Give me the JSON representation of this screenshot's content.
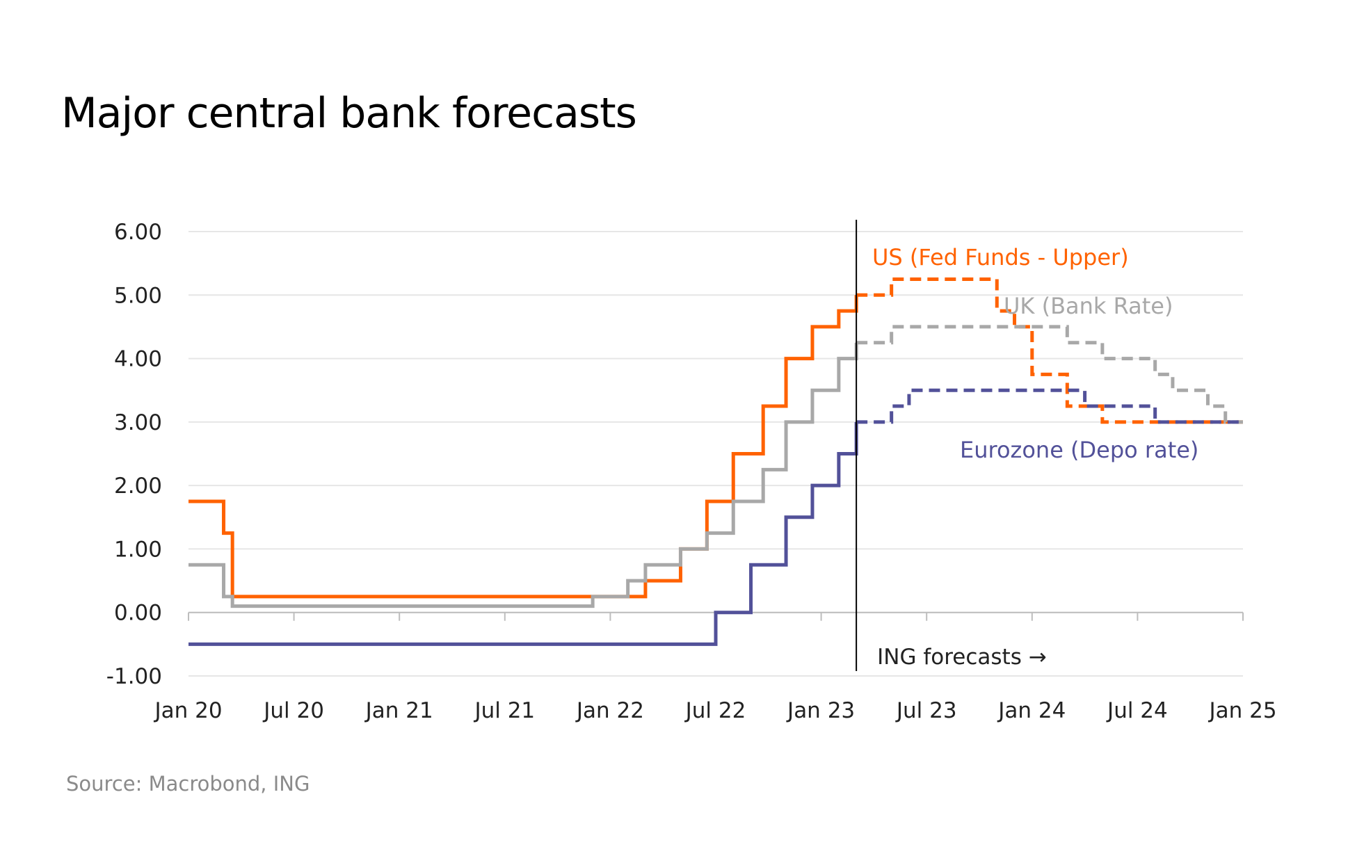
{
  "title": "Major central bank forecasts",
  "source": "Source: Macrobond, ING",
  "forecast_label": "ING forecasts →",
  "chart_data": {
    "type": "line",
    "title": "Major central bank forecasts",
    "ylim": [
      -1,
      6
    ],
    "yticks": [
      "-1.00",
      "0.00",
      "1.00",
      "2.00",
      "3.00",
      "4.00",
      "5.00",
      "6.00"
    ],
    "xticks": [
      "Jan 20",
      "Jul 20",
      "Jan 21",
      "Jul 21",
      "Jan 22",
      "Jul 22",
      "Jan 23",
      "Jul 23",
      "Jan 24",
      "Jul 24",
      "Jan 25"
    ],
    "xlim": [
      "2020-01",
      "2025-01"
    ],
    "grid": true,
    "forecast_start": "2023-03",
    "series": [
      {
        "name": "US (Fed Funds - Upper)",
        "color": "#FF6200",
        "actual": [
          [
            "2020-01",
            1.75
          ],
          [
            "2020-03",
            1.25
          ],
          [
            "2020-03.5",
            0.25
          ],
          [
            "2022-03",
            0.5
          ],
          [
            "2022-05",
            1.0
          ],
          [
            "2022-06.5",
            1.75
          ],
          [
            "2022-08",
            2.5
          ],
          [
            "2022-09.7",
            3.25
          ],
          [
            "2022-11",
            4.0
          ],
          [
            "2022-12.5",
            4.5
          ],
          [
            "2023-02",
            4.75
          ],
          [
            "2023-03",
            5.0
          ]
        ],
        "forecast": [
          [
            "2023-03",
            5.0
          ],
          [
            "2023-05",
            5.25
          ],
          [
            "2023-11",
            4.75
          ],
          [
            "2023-12",
            4.5
          ],
          [
            "2024-01",
            3.75
          ],
          [
            "2024-03",
            3.25
          ],
          [
            "2024-05",
            3.0
          ],
          [
            "2025-01",
            3.0
          ]
        ]
      },
      {
        "name": "UK (Bank Rate)",
        "color": "#A8A8A8",
        "actual": [
          [
            "2020-01",
            0.75
          ],
          [
            "2020-03",
            0.25
          ],
          [
            "2020-03.5",
            0.1
          ],
          [
            "2021-12",
            0.25
          ],
          [
            "2022-02",
            0.5
          ],
          [
            "2022-03",
            0.75
          ],
          [
            "2022-05",
            1.0
          ],
          [
            "2022-06.5",
            1.25
          ],
          [
            "2022-08",
            1.75
          ],
          [
            "2022-09.7",
            2.25
          ],
          [
            "2022-11",
            3.0
          ],
          [
            "2022-12.5",
            3.5
          ],
          [
            "2023-02",
            4.0
          ],
          [
            "2023-03",
            4.25
          ]
        ],
        "forecast": [
          [
            "2023-03",
            4.25
          ],
          [
            "2023-05",
            4.5
          ],
          [
            "2024-03",
            4.25
          ],
          [
            "2024-05",
            4.0
          ],
          [
            "2024-08",
            3.75
          ],
          [
            "2024-09",
            3.5
          ],
          [
            "2024-11",
            3.25
          ],
          [
            "2024-12",
            3.0
          ],
          [
            "2025-01",
            3.0
          ]
        ]
      },
      {
        "name": "Eurozone (Depo rate)",
        "color": "#525199",
        "actual": [
          [
            "2020-01",
            -0.5
          ],
          [
            "2022-07",
            0.0
          ],
          [
            "2022-09",
            0.75
          ],
          [
            "2022-11",
            1.5
          ],
          [
            "2022-12.5",
            2.0
          ],
          [
            "2023-02",
            2.5
          ],
          [
            "2023-03",
            3.0
          ]
        ],
        "forecast": [
          [
            "2023-03",
            3.0
          ],
          [
            "2023-05",
            3.25
          ],
          [
            "2023-06",
            3.5
          ],
          [
            "2024-04",
            3.25
          ],
          [
            "2024-08",
            3.0
          ],
          [
            "2025-01",
            3.0
          ]
        ]
      }
    ]
  }
}
